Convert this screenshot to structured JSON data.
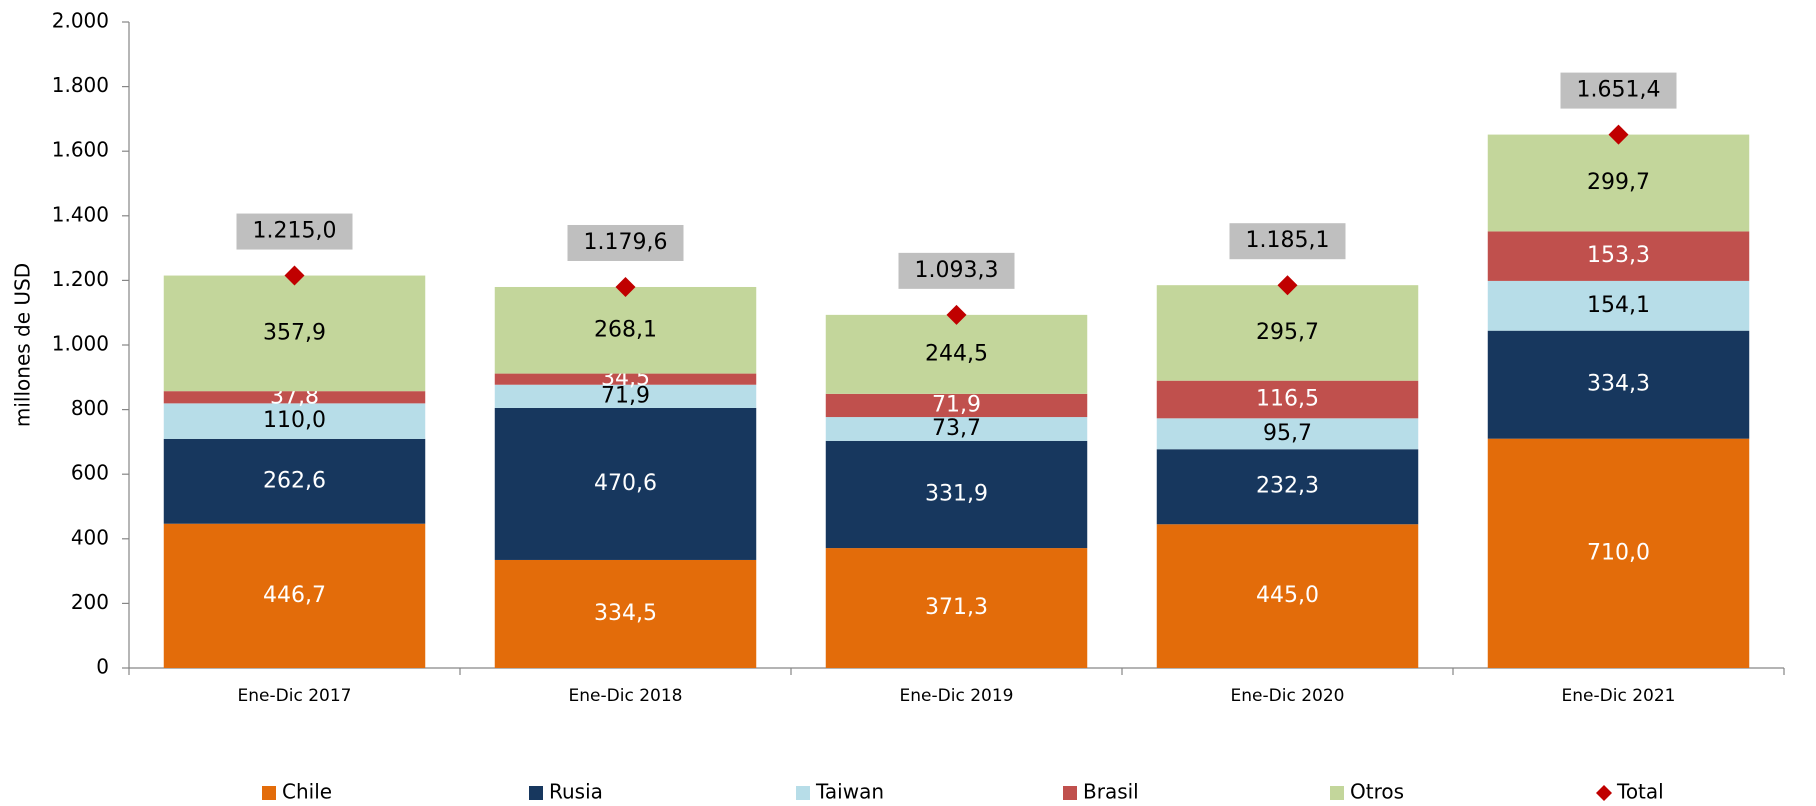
{
  "chart_data": {
    "type": "bar",
    "stacked": true,
    "y_label": "millones de  USD",
    "categories": [
      "Ene-Dic 2017",
      "Ene-Dic 2018",
      "Ene-Dic 2019",
      "Ene-Dic 2020",
      "Ene-Dic 2021"
    ],
    "series": [
      {
        "name": "Chile",
        "color": "#e36c0a",
        "values": [
          446.7,
          334.5,
          371.3,
          445.0,
          710.0
        ],
        "value_labels": [
          "446,7",
          "334,5",
          "371,3",
          "445,0",
          "710,0"
        ]
      },
      {
        "name": "Rusia",
        "color": "#17375e",
        "values": [
          262.6,
          470.6,
          331.9,
          232.3,
          334.3
        ],
        "value_labels": [
          "262,6",
          "470,6",
          "331,9",
          "232,3",
          "334,3"
        ]
      },
      {
        "name": "Taiwan",
        "color": "#b7dde8",
        "values": [
          110.0,
          71.9,
          73.7,
          95.7,
          154.1
        ],
        "value_labels": [
          "110,0",
          "71,9",
          "73,7",
          "95,7",
          "154,1"
        ]
      },
      {
        "name": "Brasil",
        "color": "#c0504d",
        "values": [
          37.8,
          34.5,
          71.9,
          116.5,
          153.3
        ],
        "value_labels": [
          "37,8",
          "34,5",
          "71,9",
          "116,5",
          "153,3"
        ]
      },
      {
        "name": "Otros",
        "color": "#c3d69b",
        "values": [
          357.9,
          268.1,
          244.5,
          295.7,
          299.7
        ],
        "value_labels": [
          "357,9",
          "268,1",
          "244,5",
          "295,7",
          "299,7"
        ]
      },
      {
        "name": "Total",
        "color": "#c00000",
        "marker": "diamond",
        "values": [
          1215.0,
          1179.6,
          1093.3,
          1185.1,
          1651.4
        ],
        "value_labels": [
          "1.215,0",
          "1.179,6",
          "1.093,3",
          "1.185,1",
          "1.651,4"
        ]
      }
    ],
    "ylim": [
      0,
      2000
    ],
    "yticks": [
      0,
      200,
      400,
      600,
      800,
      {
        "value": 1000,
        "label": "1.000"
      },
      {
        "value": 1200,
        "label": "1.200"
      },
      {
        "value": 1400,
        "label": "1.400"
      },
      {
        "value": 1600,
        "label": "1.600"
      },
      {
        "value": 1800,
        "label": "1.800"
      },
      {
        "value": 2000,
        "label": "2.000"
      }
    ],
    "legend": "bottom"
  }
}
